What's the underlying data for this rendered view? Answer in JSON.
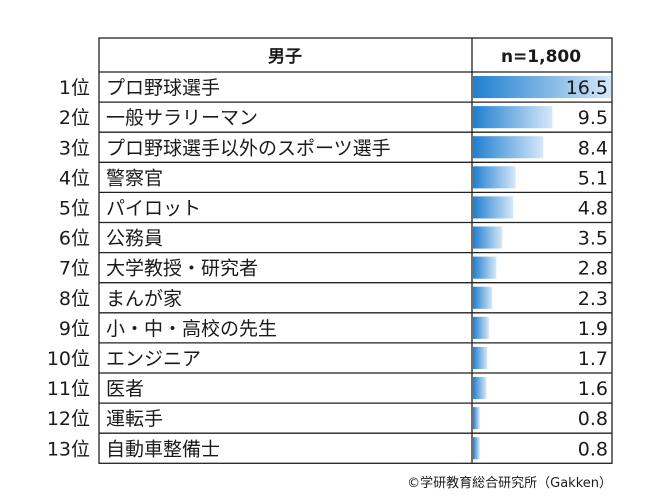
{
  "chart_data": {
    "type": "bar",
    "headers": {
      "name": "男子",
      "value": "n=1,800"
    },
    "ranks": [
      "1位",
      "2位",
      "3位",
      "4位",
      "5位",
      "6位",
      "7位",
      "8位",
      "9位",
      "10位",
      "11位",
      "12位",
      "13位"
    ],
    "categories": [
      "プロ野球選手",
      "一般サラリーマン",
      "プロ野球選手以外のスポーツ選手",
      "警察官",
      "パイロット",
      "公務員",
      "大学教授・研究者",
      "まんが家",
      "小・中・高校の先生",
      "エンジニア",
      "医者",
      "運転手",
      "自動車整備士"
    ],
    "values": [
      16.5,
      9.5,
      8.4,
      5.1,
      4.8,
      3.5,
      2.8,
      2.3,
      1.9,
      1.7,
      1.6,
      0.8,
      0.8
    ],
    "value_labels": [
      "16.5",
      "9.5",
      "8.4",
      "5.1",
      "4.8",
      "3.5",
      "2.8",
      "2.3",
      "1.9",
      "1.7",
      "1.6",
      "0.8",
      "0.8"
    ],
    "xlim": [
      0,
      16.5
    ],
    "colors": {
      "bar_start": "#1f7fd0",
      "bar_end": "#d6e8f8",
      "border": "#222222"
    },
    "source": "©学研教育総合研究所（Gakken）"
  }
}
